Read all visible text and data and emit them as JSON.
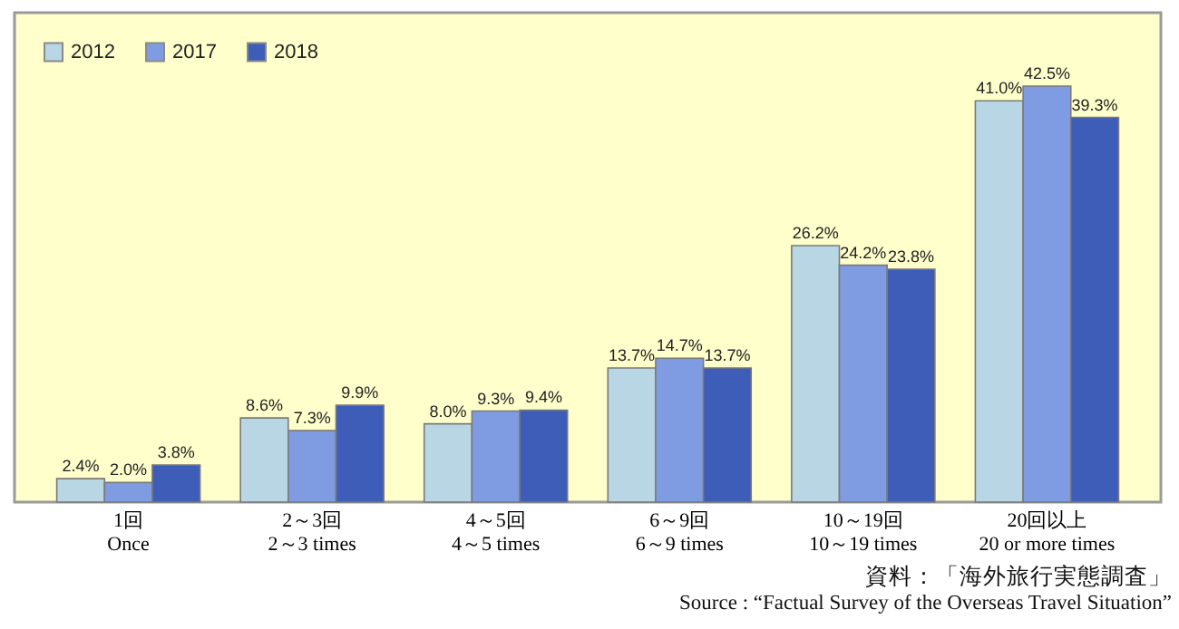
{
  "chart_data": {
    "type": "bar",
    "categories": [
      "1回\nOnce",
      "2～3回\n2～3 times",
      "4～5回\n4～5 times",
      "6～9回\n6～9 times",
      "10～19回\n10～19 times",
      "20回以上\n20 or more times"
    ],
    "series": [
      {
        "name": "2012",
        "color": "#b8d6e4",
        "values": [
          2.4,
          8.6,
          8.0,
          13.7,
          26.2,
          41.0
        ],
        "value_labels": [
          "2.4%",
          "8.6%",
          "8.0%",
          "13.7%",
          "26.2%",
          "41.0%"
        ]
      },
      {
        "name": "2017",
        "color": "#7f9ce3",
        "values": [
          2.0,
          7.3,
          9.3,
          14.7,
          24.2,
          42.5
        ],
        "value_labels": [
          "2.0%",
          "7.3%",
          "9.3%",
          "14.7%",
          "24.2%",
          "42.5%"
        ]
      },
      {
        "name": "2018",
        "color": "#3d5db8",
        "values": [
          3.8,
          9.9,
          9.4,
          13.7,
          23.8,
          39.3
        ],
        "value_labels": [
          "3.8%",
          "9.9%",
          "9.4%",
          "13.7%",
          "23.8%",
          "39.3%"
        ]
      }
    ],
    "ylim": [
      0,
      50
    ],
    "tick_labels": "x",
    "legend": "top left",
    "annotations": [
      "資料：「海外旅行実態調査」",
      "Source : “Factual Survey of the Overseas Travel Situation”"
    ]
  }
}
